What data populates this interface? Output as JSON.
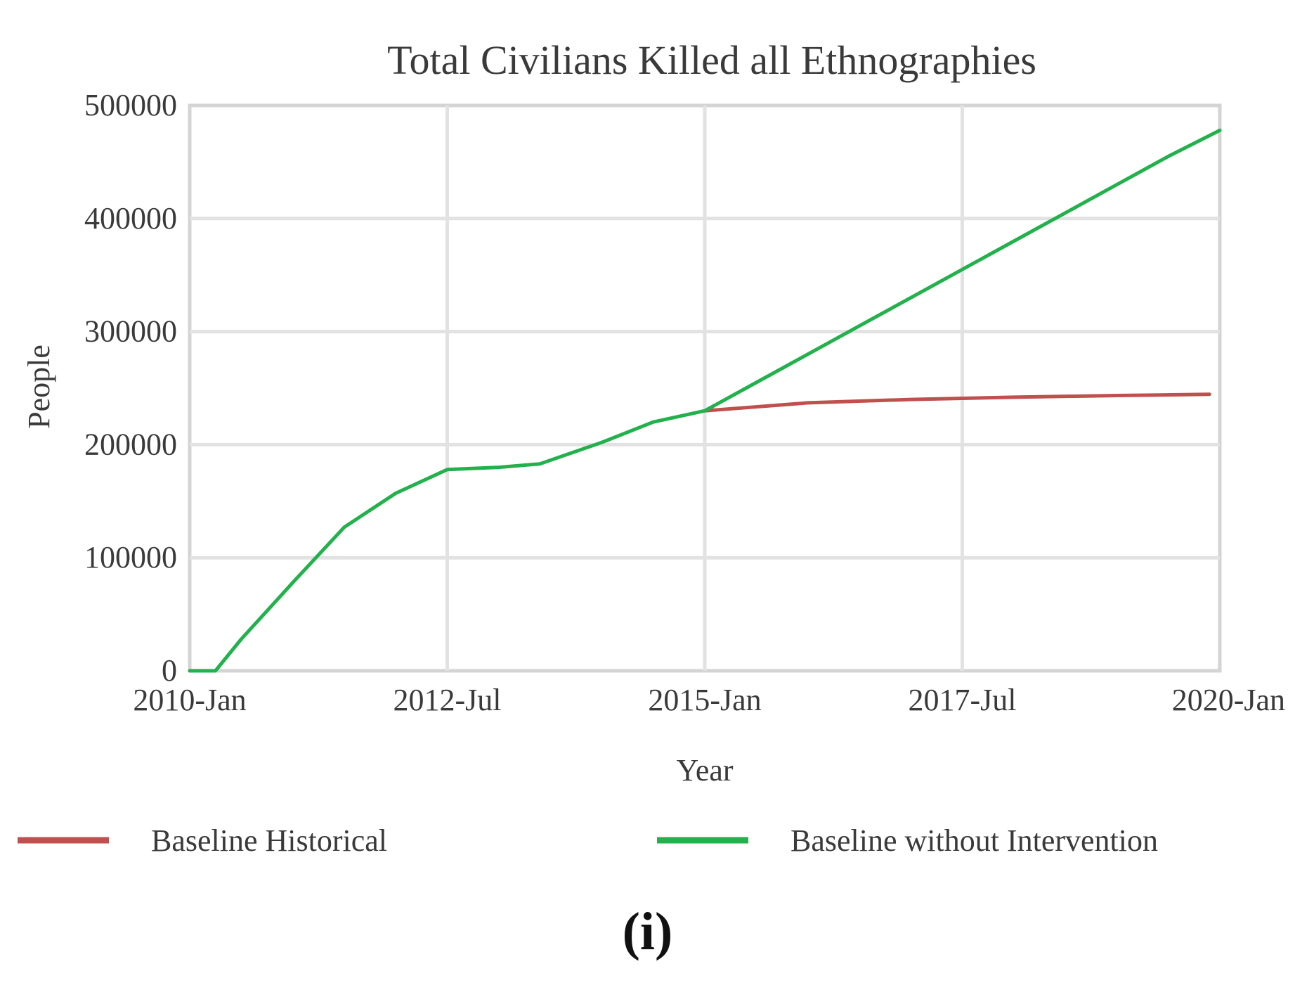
{
  "chart_data": {
    "type": "line",
    "title": "Total Civilians Killed all Ethnographies",
    "xlabel": "Year",
    "ylabel": "People",
    "xlim": [
      2010.0,
      2020.0
    ],
    "ylim": [
      0,
      500000
    ],
    "x_ticks": [
      {
        "value": 2010.0,
        "label": "2010-Jan"
      },
      {
        "value": 2012.5,
        "label": "2012-Jul"
      },
      {
        "value": 2015.0,
        "label": "2015-Jan"
      },
      {
        "value": 2017.5,
        "label": "2017-Jul"
      },
      {
        "value": 2020.0,
        "label": "2020-Jan"
      }
    ],
    "y_ticks": [
      {
        "value": 0,
        "label": "0"
      },
      {
        "value": 100000,
        "label": "100000"
      },
      {
        "value": 200000,
        "label": "200000"
      },
      {
        "value": 300000,
        "label": "300000"
      },
      {
        "value": 400000,
        "label": "400000"
      },
      {
        "value": 500000,
        "label": "500000"
      }
    ],
    "grid": true,
    "legend_position": "bottom",
    "series": [
      {
        "name": "Baseline Historical",
        "color": "#c0504d",
        "x": [
          2015.0,
          2016.0,
          2017.0,
          2018.0,
          2019.0,
          2019.9
        ],
        "y": [
          230000,
          237000,
          240000,
          242000,
          243500,
          244500
        ]
      },
      {
        "name": "Baseline without Intervention",
        "color": "#22b14c",
        "x": [
          2010.0,
          2010.25,
          2010.5,
          2011.0,
          2011.5,
          2012.0,
          2012.5,
          2013.0,
          2013.4,
          2014.0,
          2014.5,
          2015.0,
          2015.5,
          2016.0,
          2016.5,
          2017.0,
          2017.5,
          2018.0,
          2018.5,
          2019.0,
          2019.5,
          2020.0
        ],
        "y": [
          0,
          0,
          28000,
          78000,
          127000,
          157000,
          178000,
          180000,
          183000,
          202000,
          220000,
          230000,
          255000,
          280000,
          305000,
          330000,
          355000,
          380000,
          405000,
          430000,
          455000,
          478000
        ]
      }
    ]
  },
  "panel_label": "(i)"
}
